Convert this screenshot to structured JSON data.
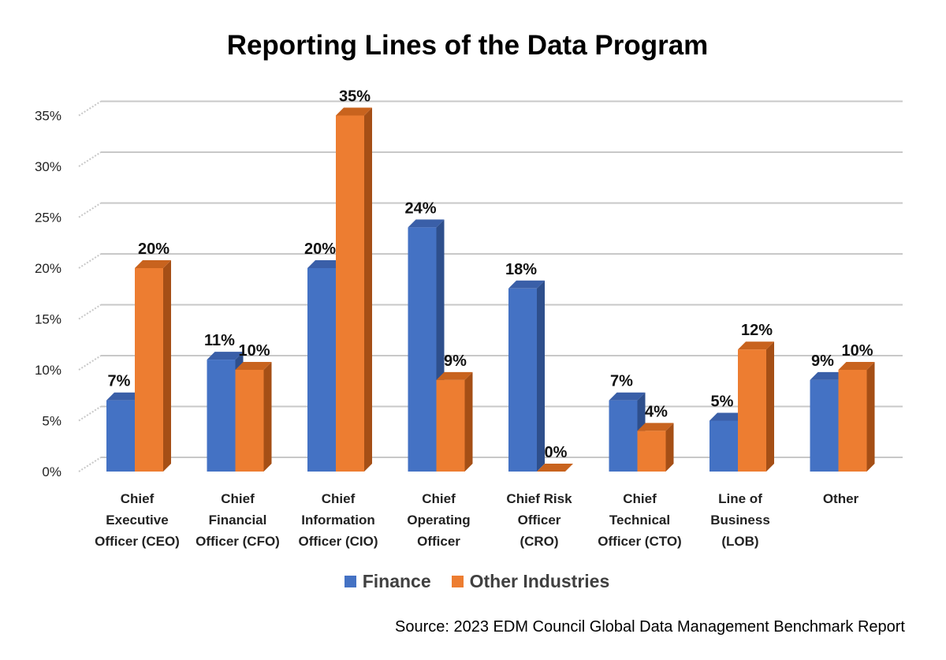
{
  "chart_data": {
    "type": "bar",
    "title": "Reporting Lines of the Data Program",
    "categories": [
      [
        "Chief",
        "Executive",
        "Officer (CEO)"
      ],
      [
        "Chief",
        "Financial",
        "Officer (CFO)"
      ],
      [
        "Chief",
        "Information",
        "Officer (CIO)"
      ],
      [
        "Chief",
        "Operating",
        "Officer"
      ],
      [
        "Chief Risk",
        "Officer",
        "(CRO)"
      ],
      [
        "Chief",
        "Technical",
        "Officer (CTO)"
      ],
      [
        "Line of",
        "Business",
        "(LOB)"
      ],
      [
        "Other"
      ]
    ],
    "series": [
      {
        "name": "Finance",
        "values": [
          7,
          11,
          20,
          24,
          18,
          7,
          5,
          9
        ],
        "labels": [
          "7%",
          "11%",
          "20%",
          "24%",
          "18%",
          "7%",
          "5%",
          "9%"
        ]
      },
      {
        "name": "Other Industries",
        "values": [
          20,
          10,
          35,
          9,
          0,
          4,
          12,
          10
        ],
        "labels": [
          "20%",
          "10%",
          "35%",
          "9%",
          "0%",
          "4%",
          "12%",
          "10%"
        ]
      }
    ],
    "ylim": [
      0,
      35
    ],
    "yticks": [
      0,
      5,
      10,
      15,
      20,
      25,
      30,
      35
    ],
    "ytick_labels": [
      "0%",
      "5%",
      "10%",
      "15%",
      "20%",
      "25%",
      "30%",
      "35%"
    ],
    "xlabel": "",
    "ylabel": "",
    "grid": true,
    "legend_position": "bottom",
    "style": "3d-column"
  },
  "colors": {
    "finance_front": "#4472C4",
    "finance_side": "#2E4F8C",
    "finance_top": "#3A5FA8",
    "other_front": "#ED7D31",
    "other_side": "#A54F16",
    "other_top": "#C8631E",
    "grid": "#C8C8C8"
  },
  "source": "Source: 2023 EDM Council Global Data Management Benchmark Report"
}
